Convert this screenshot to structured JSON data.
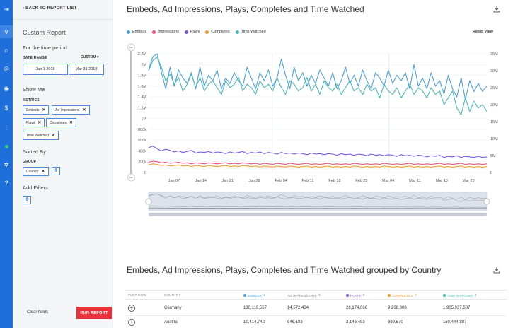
{
  "sidebar": {
    "back_label": "BACK TO REPORT LIST",
    "title": "Custom Report",
    "time_period_label": "For the time period",
    "date_range_label": "DATE RANGE",
    "custom_label": "CUSTOM",
    "start_date": "Jan 1 2018",
    "to_label": "TO",
    "end_date": "Mar 31 2018",
    "show_me_label": "Show Me",
    "metrics_label": "METRICS",
    "metrics": [
      "Embeds",
      "Ad Impressions",
      "Plays",
      "Completes",
      "Time Watched"
    ],
    "sorted_by_label": "Sorted By",
    "group_label": "GROUP",
    "group_value": "Country",
    "add_filters_label": "Add Filters",
    "clear_label": "Clear fields",
    "run_label": "RUN REPORT"
  },
  "main": {
    "chart_title": "Embeds, Ad Impressions, Plays, Completes and Time Watched",
    "reset_view_label": "Reset View",
    "table_title": "Embeds, Ad Impressions, Plays, Completes and Time Watched grouped by Country",
    "table": {
      "headers": [
        "PLOT ROW",
        "COUNTRY",
        "EMBEDS",
        "AD IMPRESSIONS",
        "PLAYS",
        "COMPLETES",
        "TIME WATCHED"
      ],
      "rows": [
        [
          "Germany",
          "130,119,557",
          "14,572,434",
          "28,174,066",
          "9,208,908",
          "1,905,937,587"
        ],
        [
          "Austria",
          "10,414,742",
          "846,183",
          "2,146,483",
          "699,570",
          "150,444,887"
        ]
      ]
    }
  },
  "colors": {
    "embeds": "#4a9fe0",
    "ad_impressions": "#e8507a",
    "plays": "#7a5ae0",
    "completes": "#f0a030",
    "time_watched": "#4ab8b8",
    "brand": "#1e6fd9",
    "run": "#e8323c"
  },
  "chart_data": {
    "type": "line",
    "title": "Embeds, Ad Impressions, Plays, Completes and Time Watched",
    "x_ticks": [
      "Jan 07",
      "Jan 14",
      "Jan 21",
      "Jan 28",
      "Feb 04",
      "Feb 11",
      "Feb 18",
      "Feb 25",
      "Mar 04",
      "Mar 11",
      "Mar 18",
      "Mar 25"
    ],
    "y_left_ticks": [
      "0",
      "200k",
      "400k",
      "600k",
      "800k",
      "1M",
      "1.2M",
      "1.4M",
      "1.6M",
      "1.8M",
      "2M",
      "2.2M"
    ],
    "y_right_ticks": [
      "0",
      "5M",
      "10M",
      "15M",
      "20M",
      "25M",
      "30M",
      "35M"
    ],
    "y_left_range": [
      0,
      2200000
    ],
    "y_right_range": [
      0,
      35000000
    ],
    "series": [
      {
        "name": "Embeds",
        "axis": "left",
        "values": [
          1.9,
          2.15,
          2.2,
          1.85,
          1.55,
          1.95,
          1.6,
          1.9,
          1.75,
          1.65,
          1.85,
          1.55,
          1.95,
          1.6,
          1.8,
          1.7,
          1.9,
          1.55,
          1.75,
          1.65,
          1.85,
          1.7,
          1.6,
          1.95,
          1.75,
          1.55,
          1.85,
          1.7,
          1.9,
          1.6,
          1.75,
          2.1,
          1.8,
          1.55,
          1.95,
          1.7,
          1.85,
          1.6,
          1.8,
          1.65,
          1.9,
          1.75,
          1.6,
          1.85,
          1.55,
          1.7,
          1.95,
          1.65,
          1.8,
          1.6,
          1.9,
          1.7,
          1.55,
          1.85,
          1.75,
          1.6,
          1.9,
          1.65,
          1.8,
          1.7,
          1.85,
          1.55,
          2.0,
          1.6,
          1.75,
          1.55,
          1.85,
          1.6,
          1.7,
          1.45,
          1.8,
          1.55,
          1.4,
          1.75,
          1.35,
          1.7,
          1.5,
          1.65,
          1.5,
          1.6
        ]
      },
      {
        "name": "Time Watched",
        "axis": "right",
        "values": [
          30,
          33,
          34,
          31,
          27,
          29,
          26,
          28,
          24,
          26,
          29,
          25,
          28,
          24,
          26,
          27,
          25,
          23,
          27,
          25,
          26,
          28,
          24,
          26,
          25,
          23,
          27,
          25,
          26,
          24,
          28,
          25,
          23,
          27,
          26,
          24,
          25,
          28,
          24,
          26,
          23,
          27,
          25,
          24,
          26,
          23,
          25,
          27,
          24,
          25,
          23,
          26,
          24,
          25,
          22,
          26,
          24,
          23,
          25,
          22,
          24,
          26,
          23,
          25,
          24,
          22,
          25,
          23,
          24,
          20,
          22,
          24,
          19,
          17,
          22,
          18,
          21,
          19,
          20,
          18
        ]
      },
      {
        "name": "Plays",
        "axis": "left",
        "values": [
          0.46,
          0.49,
          0.44,
          0.4,
          0.43,
          0.41,
          0.38,
          0.4,
          0.37,
          0.39,
          0.41,
          0.36,
          0.38,
          0.37,
          0.39,
          0.36,
          0.38,
          0.37,
          0.35,
          0.38,
          0.36,
          0.37,
          0.39,
          0.35,
          0.37,
          0.36,
          0.38,
          0.35,
          0.37,
          0.36,
          0.34,
          0.37,
          0.35,
          0.36,
          0.34,
          0.36,
          0.35,
          0.33,
          0.36,
          0.34,
          0.35,
          0.33,
          0.35,
          0.34,
          0.32,
          0.35,
          0.33,
          0.34,
          0.32,
          0.34,
          0.33,
          0.31,
          0.34,
          0.32,
          0.33,
          0.31,
          0.33,
          0.32,
          0.3,
          0.33,
          0.31,
          0.32,
          0.3,
          0.32,
          0.31,
          0.29,
          0.31,
          0.3,
          0.32,
          0.28,
          0.3,
          0.29,
          0.31,
          0.28,
          0.3,
          0.29,
          0.28,
          0.3,
          0.28,
          0.29
        ]
      },
      {
        "name": "Ad Impressions",
        "axis": "left",
        "values": [
          0.19,
          0.21,
          0.2,
          0.18,
          0.19,
          0.17,
          0.18,
          0.19,
          0.17,
          0.18,
          0.16,
          0.18,
          0.17,
          0.16,
          0.18,
          0.17,
          0.16,
          0.17,
          0.18,
          0.16,
          0.17,
          0.16,
          0.18,
          0.17,
          0.16,
          0.17,
          0.15,
          0.17,
          0.16,
          0.15,
          0.17,
          0.16,
          0.15,
          0.17,
          0.16,
          0.15,
          0.16,
          0.17,
          0.15,
          0.16,
          0.15,
          0.16,
          0.17,
          0.15,
          0.16,
          0.15,
          0.16,
          0.15,
          0.17,
          0.16,
          0.15,
          0.16,
          0.15,
          0.16,
          0.15,
          0.17,
          0.16,
          0.15,
          0.16,
          0.15,
          0.16,
          0.17,
          0.15,
          0.16,
          0.15,
          0.16,
          0.15,
          0.16,
          0.17,
          0.15,
          0.16,
          0.15,
          0.16,
          0.17,
          0.15,
          0.16,
          0.15,
          0.16,
          0.15,
          0.16
        ]
      },
      {
        "name": "Completes",
        "axis": "left",
        "values": [
          0.14,
          0.16,
          0.15,
          0.13,
          0.14,
          0.12,
          0.13,
          0.14,
          0.12,
          0.13,
          0.11,
          0.13,
          0.12,
          0.11,
          0.13,
          0.12,
          0.11,
          0.12,
          0.13,
          0.11,
          0.12,
          0.11,
          0.13,
          0.12,
          0.11,
          0.12,
          0.1,
          0.12,
          0.11,
          0.1,
          0.12,
          0.11,
          0.1,
          0.12,
          0.11,
          0.1,
          0.11,
          0.12,
          0.1,
          0.11,
          0.1,
          0.11,
          0.12,
          0.1,
          0.11,
          0.1,
          0.11,
          0.1,
          0.12,
          0.11,
          0.1,
          0.11,
          0.1,
          0.11,
          0.1,
          0.12,
          0.11,
          0.1,
          0.11,
          0.1,
          0.11,
          0.12,
          0.1,
          0.11,
          0.1,
          0.11,
          0.1,
          0.11,
          0.12,
          0.1,
          0.11,
          0.1,
          0.11,
          0.12,
          0.1,
          0.11,
          0.1,
          0.11,
          0.1,
          0.11
        ]
      }
    ],
    "legend": [
      "Embeds",
      "Impressions",
      "Plays",
      "Completes",
      "Time Watched"
    ]
  }
}
